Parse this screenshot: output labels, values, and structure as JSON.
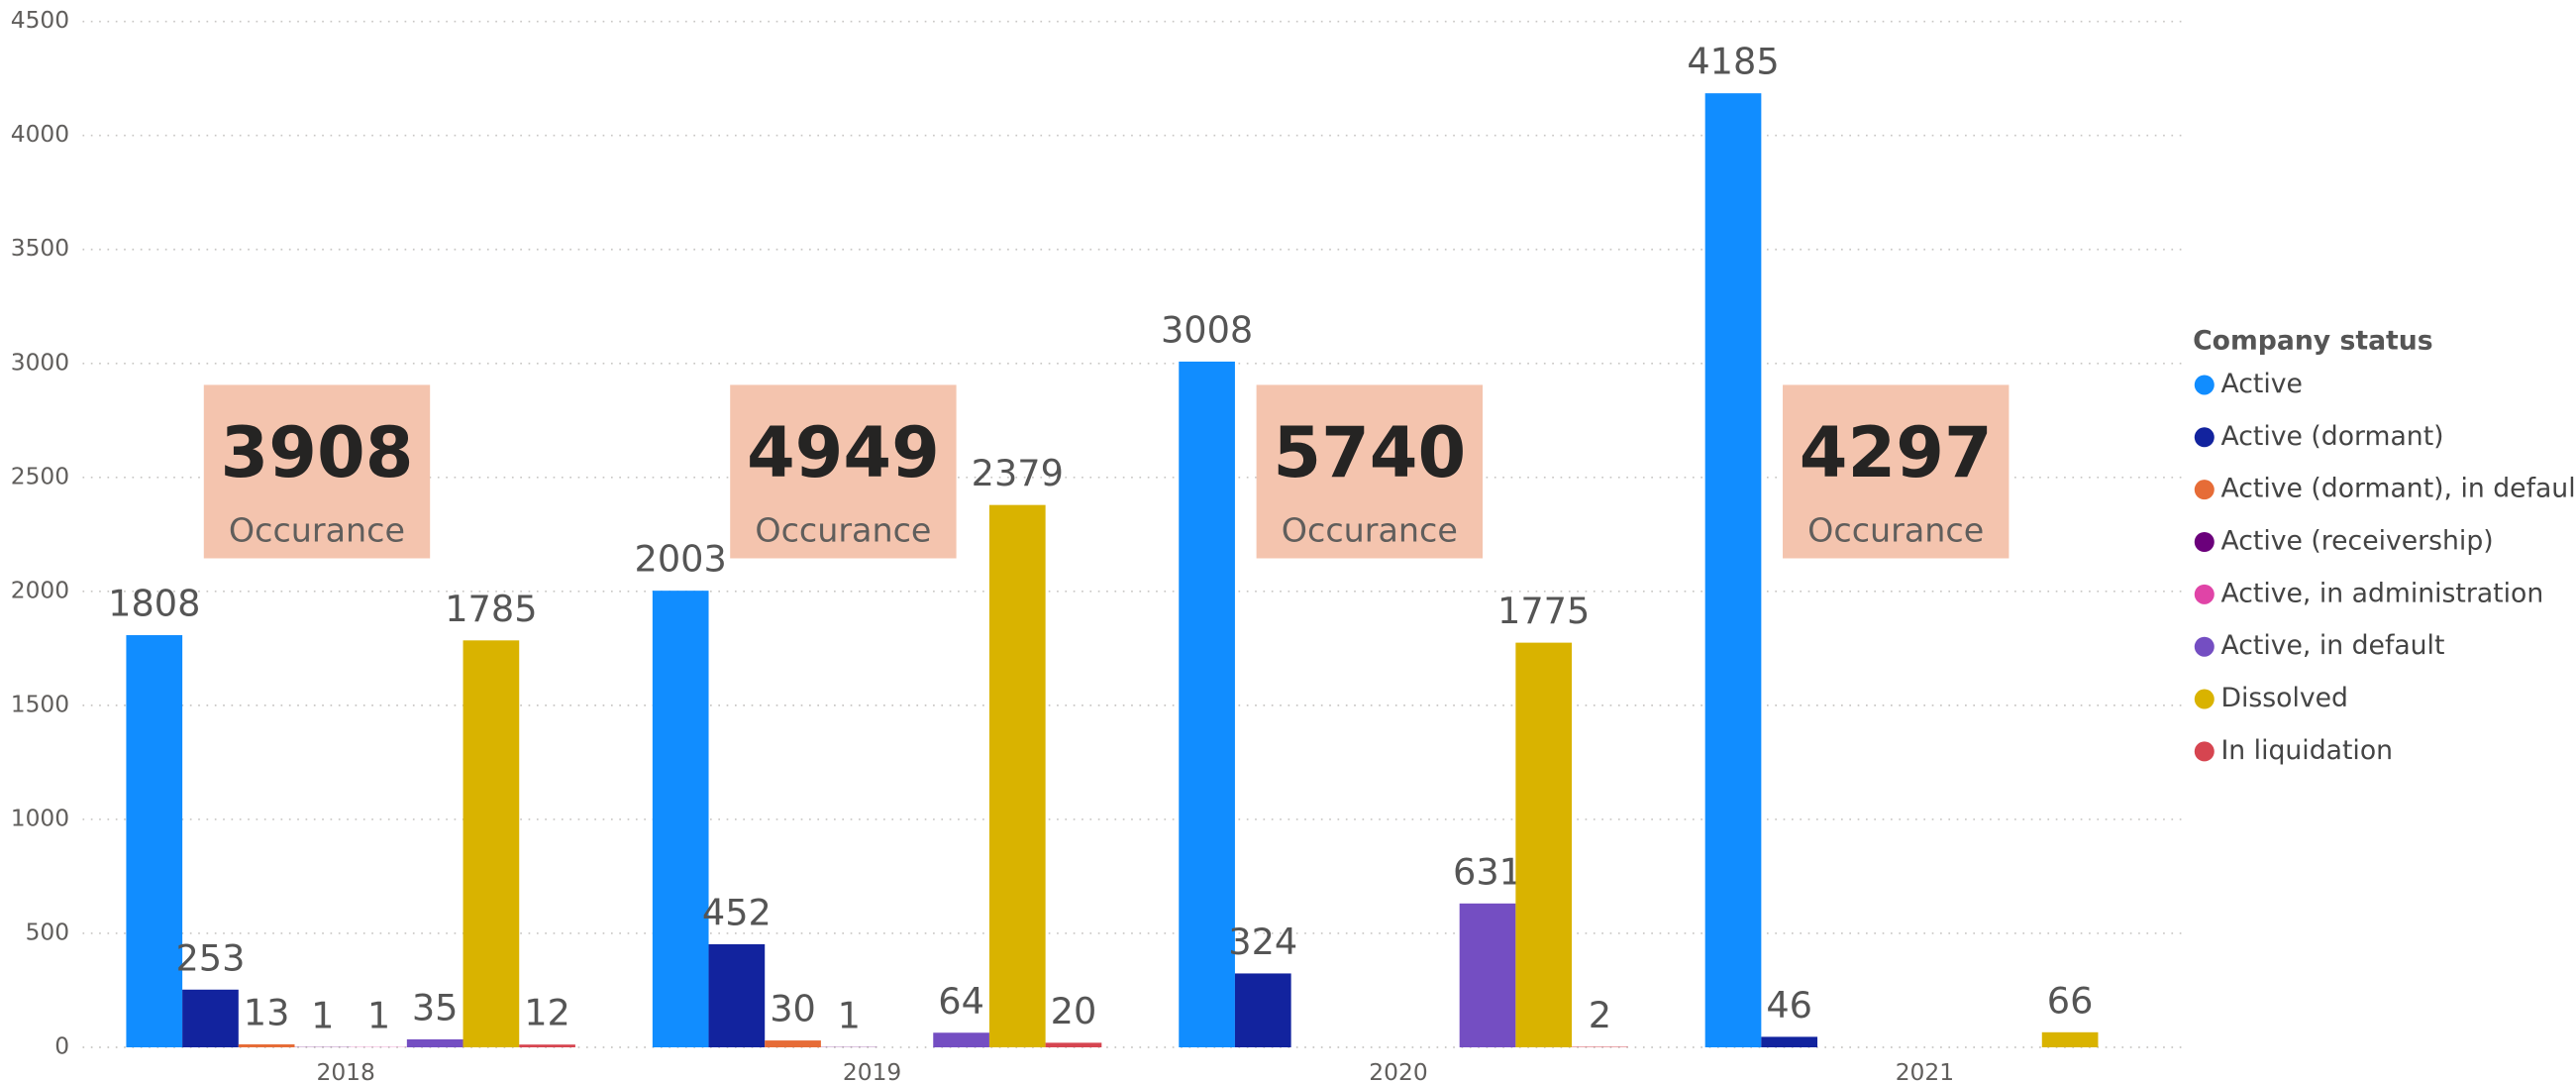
{
  "chart_data": {
    "type": "bar",
    "categories": [
      "2018",
      "2019",
      "2020",
      "2021"
    ],
    "series": [
      {
        "name": "Active",
        "color": "#118DFF",
        "values": [
          1808,
          2003,
          3008,
          4185
        ]
      },
      {
        "name": "Active (dormant)",
        "color": "#12239E",
        "values": [
          253,
          452,
          324,
          46
        ]
      },
      {
        "name": "Active (dormant), in default",
        "color": "#E66C37",
        "values": [
          13,
          30,
          null,
          null
        ]
      },
      {
        "name": "Active (receivership)",
        "color": "#6B007B",
        "values": [
          1,
          1,
          null,
          null
        ]
      },
      {
        "name": "Active, in administration",
        "color": "#E044A7",
        "values": [
          1,
          null,
          null,
          null
        ]
      },
      {
        "name": "Active, in default",
        "color": "#744EC2",
        "values": [
          35,
          64,
          631,
          null
        ]
      },
      {
        "name": "Dissolved",
        "color": "#D9B300",
        "values": [
          1785,
          2379,
          1775,
          66
        ]
      },
      {
        "name": "In liquidation",
        "color": "#D64550",
        "values": [
          12,
          20,
          2,
          null
        ]
      }
    ],
    "ylim": [
      0,
      4500
    ],
    "yticks": [
      0,
      500,
      1000,
      1500,
      2000,
      2500,
      3000,
      3500,
      4000,
      4500
    ],
    "grid": true,
    "legend_title": "Company status",
    "legend": "right",
    "cards": [
      {
        "value": 3908,
        "label": "Occurance"
      },
      {
        "value": 4949,
        "label": "Occurance"
      },
      {
        "value": 5740,
        "label": "Occurance"
      },
      {
        "value": 4297,
        "label": "Occurance"
      }
    ]
  }
}
